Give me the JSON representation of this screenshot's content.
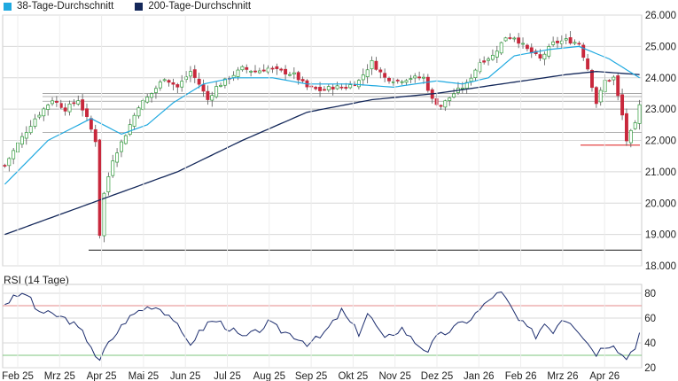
{
  "legend": {
    "ma38": {
      "label": "38-Tage-Durchschnitt",
      "color": "#1fa9e0"
    },
    "ma200": {
      "label": "200-Tage-Durchschnitt",
      "color": "#14285a"
    }
  },
  "rsi_title": "RSI (14 Tage)",
  "colors": {
    "up": "#2e9a3a",
    "down": "#c8283c",
    "wick": "#555555",
    "rsi_line": "#1c2d6e",
    "rsi_upper": "#e58a8a",
    "rsi_lower": "#7dc47d",
    "grid": "#d8d8d8",
    "support": "#444444",
    "low_marker": "#e03030"
  },
  "chart_data": [
    {
      "type": "candlestick",
      "title": "",
      "x_tick_labels": [
        "Feb 25",
        "Mrz 25",
        "Apr 25",
        "Mai 25",
        "Jun 25",
        "Jul 25",
        "Aug 25",
        "Sep 25",
        "Okt 25",
        "Nov 25",
        "Dez 25",
        "Jan 26",
        "Feb 26",
        "Mrz 26",
        "Apr 26"
      ],
      "y_tick_labels": [
        "18.000",
        "19.000",
        "20.000",
        "21.000",
        "22.000",
        "23.000",
        "24.000",
        "25.000",
        "26.000"
      ],
      "ylim": [
        18000,
        26000
      ],
      "grid": true,
      "price_keypoints": [
        {
          "x": 0,
          "y": 21200
        },
        {
          "x": 3,
          "y": 21900
        },
        {
          "x": 7,
          "y": 22700
        },
        {
          "x": 11,
          "y": 23300
        },
        {
          "x": 14,
          "y": 23000
        },
        {
          "x": 17,
          "y": 23300
        },
        {
          "x": 19,
          "y": 22700
        },
        {
          "x": 21,
          "y": 22000
        },
        {
          "x": 22,
          "y": 19000
        },
        {
          "x": 23,
          "y": 20300
        },
        {
          "x": 25,
          "y": 21400
        },
        {
          "x": 28,
          "y": 22200
        },
        {
          "x": 31,
          "y": 23100
        },
        {
          "x": 34,
          "y": 23500
        },
        {
          "x": 37,
          "y": 24000
        },
        {
          "x": 40,
          "y": 23700
        },
        {
          "x": 43,
          "y": 24200
        },
        {
          "x": 45,
          "y": 23800
        },
        {
          "x": 47,
          "y": 23300
        },
        {
          "x": 49,
          "y": 23700
        },
        {
          "x": 52,
          "y": 24000
        },
        {
          "x": 55,
          "y": 24300
        },
        {
          "x": 58,
          "y": 24200
        },
        {
          "x": 61,
          "y": 24300
        },
        {
          "x": 64,
          "y": 24200
        },
        {
          "x": 67,
          "y": 24100
        },
        {
          "x": 70,
          "y": 23700
        },
        {
          "x": 73,
          "y": 23600
        },
        {
          "x": 76,
          "y": 23700
        },
        {
          "x": 79,
          "y": 23700
        },
        {
          "x": 82,
          "y": 23900
        },
        {
          "x": 85,
          "y": 24500
        },
        {
          "x": 88,
          "y": 24000
        },
        {
          "x": 91,
          "y": 23900
        },
        {
          "x": 94,
          "y": 24000
        },
        {
          "x": 97,
          "y": 24000
        },
        {
          "x": 99,
          "y": 23300
        },
        {
          "x": 101,
          "y": 23100
        },
        {
          "x": 104,
          "y": 23500
        },
        {
          "x": 107,
          "y": 23800
        },
        {
          "x": 110,
          "y": 24500
        },
        {
          "x": 113,
          "y": 24700
        },
        {
          "x": 116,
          "y": 25300
        },
        {
          "x": 118,
          "y": 25300
        },
        {
          "x": 121,
          "y": 24900
        },
        {
          "x": 124,
          "y": 24600
        },
        {
          "x": 127,
          "y": 25100
        },
        {
          "x": 130,
          "y": 25200
        },
        {
          "x": 133,
          "y": 25100
        },
        {
          "x": 135,
          "y": 24300
        },
        {
          "x": 137,
          "y": 23200
        },
        {
          "x": 139,
          "y": 23900
        },
        {
          "x": 141,
          "y": 24000
        },
        {
          "x": 143,
          "y": 22800
        },
        {
          "x": 144,
          "y": 22000
        },
        {
          "x": 146,
          "y": 22500
        },
        {
          "x": 147,
          "y": 23100
        }
      ],
      "ma38_keypoints": [
        {
          "x": 0,
          "y": 20600
        },
        {
          "x": 10,
          "y": 22000
        },
        {
          "x": 20,
          "y": 22700
        },
        {
          "x": 27,
          "y": 22200
        },
        {
          "x": 33,
          "y": 22500
        },
        {
          "x": 39,
          "y": 23200
        },
        {
          "x": 46,
          "y": 23800
        },
        {
          "x": 53,
          "y": 24000
        },
        {
          "x": 62,
          "y": 24000
        },
        {
          "x": 70,
          "y": 23800
        },
        {
          "x": 80,
          "y": 23800
        },
        {
          "x": 90,
          "y": 23700
        },
        {
          "x": 100,
          "y": 23900
        },
        {
          "x": 106,
          "y": 23800
        },
        {
          "x": 112,
          "y": 24000
        },
        {
          "x": 118,
          "y": 24700
        },
        {
          "x": 126,
          "y": 24900
        },
        {
          "x": 133,
          "y": 25000
        },
        {
          "x": 140,
          "y": 24600
        },
        {
          "x": 147,
          "y": 24000
        }
      ],
      "ma200_keypoints": [
        {
          "x": 0,
          "y": 19000
        },
        {
          "x": 20,
          "y": 20000
        },
        {
          "x": 40,
          "y": 21000
        },
        {
          "x": 55,
          "y": 22000
        },
        {
          "x": 70,
          "y": 22900
        },
        {
          "x": 85,
          "y": 23300
        },
        {
          "x": 100,
          "y": 23500
        },
        {
          "x": 115,
          "y": 23800
        },
        {
          "x": 130,
          "y": 24100
        },
        {
          "x": 137,
          "y": 24200
        },
        {
          "x": 147,
          "y": 24100
        }
      ],
      "support_levels": [
        23500,
        23400,
        23250,
        23000,
        22250,
        18500
      ],
      "last_low": 21850
    },
    {
      "type": "line",
      "title": "RSI (14 Tage)",
      "y_tick_labels": [
        "20",
        "40",
        "60",
        "80"
      ],
      "ylim": [
        20,
        85
      ],
      "reference_lines": [
        30,
        70
      ],
      "rsi_keypoints": [
        {
          "x": 0,
          "y": 72
        },
        {
          "x": 3,
          "y": 78
        },
        {
          "x": 5,
          "y": 80
        },
        {
          "x": 7,
          "y": 68
        },
        {
          "x": 9,
          "y": 64
        },
        {
          "x": 12,
          "y": 62
        },
        {
          "x": 15,
          "y": 58
        },
        {
          "x": 18,
          "y": 48
        },
        {
          "x": 20,
          "y": 38
        },
        {
          "x": 21,
          "y": 30
        },
        {
          "x": 22,
          "y": 24
        },
        {
          "x": 23,
          "y": 34
        },
        {
          "x": 25,
          "y": 44
        },
        {
          "x": 28,
          "y": 58
        },
        {
          "x": 31,
          "y": 66
        },
        {
          "x": 34,
          "y": 70
        },
        {
          "x": 36,
          "y": 68
        },
        {
          "x": 39,
          "y": 60
        },
        {
          "x": 41,
          "y": 46
        },
        {
          "x": 43,
          "y": 40
        },
        {
          "x": 45,
          "y": 48
        },
        {
          "x": 47,
          "y": 56
        },
        {
          "x": 49,
          "y": 58
        },
        {
          "x": 52,
          "y": 52
        },
        {
          "x": 55,
          "y": 44
        },
        {
          "x": 58,
          "y": 48
        },
        {
          "x": 61,
          "y": 56
        },
        {
          "x": 64,
          "y": 50
        },
        {
          "x": 67,
          "y": 46
        },
        {
          "x": 70,
          "y": 40
        },
        {
          "x": 73,
          "y": 44
        },
        {
          "x": 76,
          "y": 56
        },
        {
          "x": 78,
          "y": 66
        },
        {
          "x": 80,
          "y": 56
        },
        {
          "x": 82,
          "y": 48
        },
        {
          "x": 84,
          "y": 64
        },
        {
          "x": 86,
          "y": 54
        },
        {
          "x": 88,
          "y": 42
        },
        {
          "x": 90,
          "y": 48
        },
        {
          "x": 92,
          "y": 52
        },
        {
          "x": 94,
          "y": 44
        },
        {
          "x": 96,
          "y": 38
        },
        {
          "x": 98,
          "y": 34
        },
        {
          "x": 100,
          "y": 44
        },
        {
          "x": 102,
          "y": 48
        },
        {
          "x": 104,
          "y": 52
        },
        {
          "x": 106,
          "y": 56
        },
        {
          "x": 108,
          "y": 60
        },
        {
          "x": 111,
          "y": 70
        },
        {
          "x": 113,
          "y": 78
        },
        {
          "x": 115,
          "y": 80
        },
        {
          "x": 117,
          "y": 70
        },
        {
          "x": 119,
          "y": 58
        },
        {
          "x": 121,
          "y": 52
        },
        {
          "x": 123,
          "y": 46
        },
        {
          "x": 125,
          "y": 56
        },
        {
          "x": 127,
          "y": 50
        },
        {
          "x": 129,
          "y": 60
        },
        {
          "x": 131,
          "y": 58
        },
        {
          "x": 133,
          "y": 50
        },
        {
          "x": 135,
          "y": 40
        },
        {
          "x": 137,
          "y": 32
        },
        {
          "x": 139,
          "y": 38
        },
        {
          "x": 141,
          "y": 40
        },
        {
          "x": 143,
          "y": 30
        },
        {
          "x": 144,
          "y": 28
        },
        {
          "x": 146,
          "y": 38
        },
        {
          "x": 147,
          "y": 48
        }
      ]
    }
  ]
}
